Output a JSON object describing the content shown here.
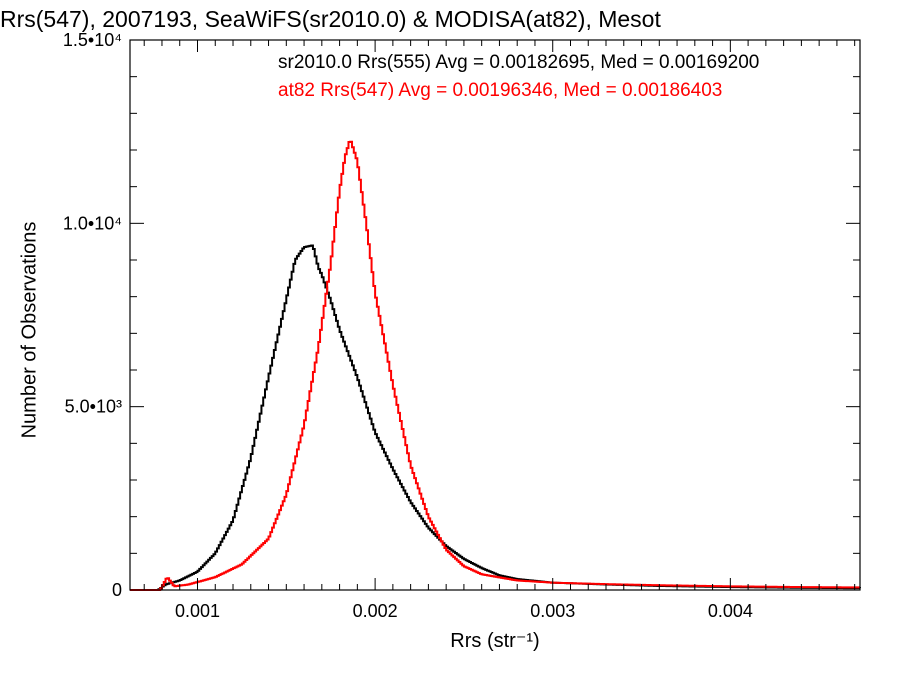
{
  "chart_data": {
    "type": "histogram",
    "title": "Rrs(547), 2007193, SeaWiFS(sr2010.0) & MODISA(at82), Mesot",
    "xlabel": "Rrs (str⁻¹)",
    "ylabel": "Number of Observations",
    "xlim": [
      0.00062,
      0.00473
    ],
    "ylim": [
      0,
      15000
    ],
    "x_ticks": [
      {
        "value": 0.001,
        "label": "0.001"
      },
      {
        "value": 0.002,
        "label": "0.002"
      },
      {
        "value": 0.003,
        "label": "0.003"
      },
      {
        "value": 0.004,
        "label": "0.004"
      }
    ],
    "y_ticks": [
      {
        "value": 0,
        "label": "0"
      },
      {
        "value": 5000,
        "label": "5.0•10³"
      },
      {
        "value": 10000,
        "label": "1.0•10⁴"
      },
      {
        "value": 15000,
        "label": "1.5•10⁴"
      }
    ],
    "legend_position": "top-right",
    "series": [
      {
        "name": "sr2010.0 Rrs(555) Avg = 0.00182695, Med = 0.00169200",
        "color": "#000000",
        "points": [
          [
            0.00062,
            0
          ],
          [
            0.00078,
            0
          ],
          [
            0.00082,
            150
          ],
          [
            0.0009,
            260
          ],
          [
            0.001,
            500
          ],
          [
            0.0011,
            1000
          ],
          [
            0.0012,
            1900
          ],
          [
            0.0013,
            3600
          ],
          [
            0.0014,
            5800
          ],
          [
            0.00148,
            7500
          ],
          [
            0.00155,
            9000
          ],
          [
            0.0016,
            9350
          ],
          [
            0.00165,
            9400
          ],
          [
            0.00168,
            8800
          ],
          [
            0.0017,
            8600
          ],
          [
            0.00175,
            7900
          ],
          [
            0.0018,
            7100
          ],
          [
            0.0019,
            5800
          ],
          [
            0.002,
            4300
          ],
          [
            0.0021,
            3300
          ],
          [
            0.0022,
            2400
          ],
          [
            0.0023,
            1700
          ],
          [
            0.0024,
            1200
          ],
          [
            0.0025,
            850
          ],
          [
            0.0026,
            600
          ],
          [
            0.0027,
            400
          ],
          [
            0.0028,
            300
          ],
          [
            0.003,
            200
          ],
          [
            0.0033,
            150
          ],
          [
            0.0036,
            110
          ],
          [
            0.004,
            80
          ],
          [
            0.0044,
            60
          ],
          [
            0.00473,
            50
          ]
        ]
      },
      {
        "name": "at82 Rrs(547) Avg = 0.00196346, Med = 0.00186403",
        "color": "#ff0000",
        "points": [
          [
            0.00062,
            0
          ],
          [
            0.00079,
            0
          ],
          [
            0.00083,
            350
          ],
          [
            0.00087,
            100
          ],
          [
            0.00095,
            150
          ],
          [
            0.0011,
            350
          ],
          [
            0.00125,
            700
          ],
          [
            0.0014,
            1400
          ],
          [
            0.0015,
            2600
          ],
          [
            0.0016,
            4500
          ],
          [
            0.00168,
            6600
          ],
          [
            0.00175,
            8900
          ],
          [
            0.0018,
            10900
          ],
          [
            0.00183,
            11800
          ],
          [
            0.00186,
            12300
          ],
          [
            0.0019,
            11700
          ],
          [
            0.00195,
            10000
          ],
          [
            0.002,
            8100
          ],
          [
            0.0021,
            5600
          ],
          [
            0.0022,
            3400
          ],
          [
            0.0023,
            2000
          ],
          [
            0.0024,
            1100
          ],
          [
            0.0025,
            650
          ],
          [
            0.0026,
            430
          ],
          [
            0.0028,
            260
          ],
          [
            0.003,
            200
          ],
          [
            0.0033,
            160
          ],
          [
            0.0036,
            130
          ],
          [
            0.004,
            100
          ],
          [
            0.0044,
            80
          ],
          [
            0.00473,
            70
          ]
        ]
      }
    ]
  }
}
